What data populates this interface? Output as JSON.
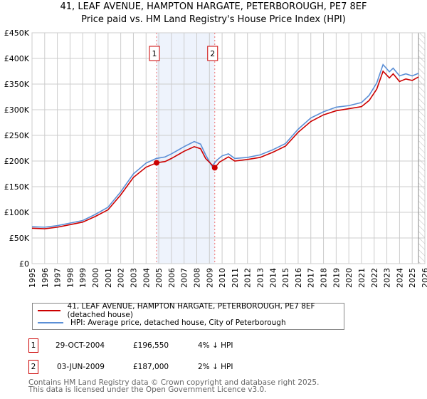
{
  "chart_data": {
    "type": "line",
    "title": "41, LEAF AVENUE, HAMPTON HARGATE, PETERBOROUGH, PE7 8EF",
    "subtitle": "Price paid vs. HM Land Registry's House Price Index (HPI)",
    "xlim": [
      1995,
      2026
    ],
    "ylim": [
      0,
      450000
    ],
    "x_ticks": [
      "1995",
      "1996",
      "1997",
      "1998",
      "1999",
      "2000",
      "2001",
      "2002",
      "2003",
      "2004",
      "2005",
      "2006",
      "2007",
      "2008",
      "2009",
      "2010",
      "2011",
      "2012",
      "2013",
      "2014",
      "2015",
      "2016",
      "2017",
      "2018",
      "2019",
      "2020",
      "2021",
      "2022",
      "2023",
      "2024",
      "2025",
      "2026"
    ],
    "y_ticks": [
      {
        "v": 0,
        "l": "£0"
      },
      {
        "v": 50000,
        "l": "£50K"
      },
      {
        "v": 100000,
        "l": "£100K"
      },
      {
        "v": 150000,
        "l": "£150K"
      },
      {
        "v": 200000,
        "l": "£200K"
      },
      {
        "v": 250000,
        "l": "£250K"
      },
      {
        "v": 300000,
        "l": "£300K"
      },
      {
        "v": 350000,
        "l": "£350K"
      },
      {
        "v": 400000,
        "l": "£400K"
      },
      {
        "v": 450000,
        "l": "£450K"
      }
    ],
    "grid": true,
    "shaded_span": [
      2004.83,
      2009.42
    ],
    "forecast_from": 2025.5,
    "series": [
      {
        "name": "HPI: Average price, detached house, City of Peterborough",
        "color": "#5b8fd6",
        "points": [
          [
            1995,
            72000
          ],
          [
            1996,
            71000
          ],
          [
            1997,
            74000
          ],
          [
            1998,
            79000
          ],
          [
            1999,
            84000
          ],
          [
            2000,
            96000
          ],
          [
            2001,
            110000
          ],
          [
            2002,
            140000
          ],
          [
            2003,
            175000
          ],
          [
            2004,
            196000
          ],
          [
            2004.8,
            205000
          ],
          [
            2005.5,
            208000
          ],
          [
            2006,
            214000
          ],
          [
            2007,
            228000
          ],
          [
            2007.8,
            238000
          ],
          [
            2008.3,
            233000
          ],
          [
            2008.7,
            212000
          ],
          [
            2009.2,
            190000
          ],
          [
            2009.6,
            202000
          ],
          [
            2010,
            210000
          ],
          [
            2010.5,
            214000
          ],
          [
            2011,
            205000
          ],
          [
            2012,
            207000
          ],
          [
            2013,
            212000
          ],
          [
            2014,
            222000
          ],
          [
            2015,
            234000
          ],
          [
            2016,
            262000
          ],
          [
            2017,
            284000
          ],
          [
            2018,
            296000
          ],
          [
            2019,
            305000
          ],
          [
            2020,
            308000
          ],
          [
            2021,
            314000
          ],
          [
            2021.6,
            328000
          ],
          [
            2022.2,
            352000
          ],
          [
            2022.7,
            388000
          ],
          [
            2023.2,
            374000
          ],
          [
            2023.5,
            381000
          ],
          [
            2024,
            366000
          ],
          [
            2024.5,
            370000
          ],
          [
            2025,
            366000
          ],
          [
            2025.5,
            371000
          ]
        ]
      },
      {
        "name": "41, LEAF AVENUE, HAMPTON HARGATE, PETERBOROUGH, PE7 8EF (detached house)",
        "color": "#cc0000",
        "points": [
          [
            1995,
            69000
          ],
          [
            1996,
            68000
          ],
          [
            1997,
            71000
          ],
          [
            1998,
            76000
          ],
          [
            1999,
            81000
          ],
          [
            2000,
            92000
          ],
          [
            2001,
            105000
          ],
          [
            2002,
            134000
          ],
          [
            2003,
            168000
          ],
          [
            2004,
            188000
          ],
          [
            2004.83,
            196550
          ],
          [
            2005.5,
            199000
          ],
          [
            2006,
            205000
          ],
          [
            2007,
            219000
          ],
          [
            2007.8,
            228000
          ],
          [
            2008.3,
            224000
          ],
          [
            2008.7,
            205000
          ],
          [
            2009.42,
            187000
          ],
          [
            2009.8,
            198000
          ],
          [
            2010.5,
            208000
          ],
          [
            2011,
            200000
          ],
          [
            2012,
            203000
          ],
          [
            2013,
            207000
          ],
          [
            2014,
            217000
          ],
          [
            2015,
            229000
          ],
          [
            2016,
            256000
          ],
          [
            2017,
            277000
          ],
          [
            2018,
            290000
          ],
          [
            2019,
            298000
          ],
          [
            2020,
            302000
          ],
          [
            2021,
            306000
          ],
          [
            2021.6,
            318000
          ],
          [
            2022.2,
            340000
          ],
          [
            2022.7,
            375000
          ],
          [
            2023.2,
            362000
          ],
          [
            2023.5,
            370000
          ],
          [
            2024,
            355000
          ],
          [
            2024.5,
            360000
          ],
          [
            2025,
            357000
          ],
          [
            2025.5,
            364000
          ]
        ]
      }
    ],
    "sales": [
      {
        "label": "1",
        "x": 2004.83,
        "y": 196550
      },
      {
        "label": "2",
        "x": 2009.42,
        "y": 187000
      }
    ]
  },
  "legend": {
    "red": "41, LEAF AVENUE, HAMPTON HARGATE, PETERBOROUGH, PE7 8EF (detached house)",
    "blue": "HPI: Average price, detached house, City of Peterborough"
  },
  "transactions": [
    {
      "num": "1",
      "date": "29-OCT-2004",
      "price": "£196,550",
      "hpi": "4% ↓ HPI"
    },
    {
      "num": "2",
      "date": "03-JUN-2009",
      "price": "£187,000",
      "hpi": "2% ↓ HPI"
    }
  ],
  "footer": [
    "Contains HM Land Registry data © Crown copyright and database right 2025.",
    "This data is licensed under the Open Government Licence v3.0."
  ]
}
